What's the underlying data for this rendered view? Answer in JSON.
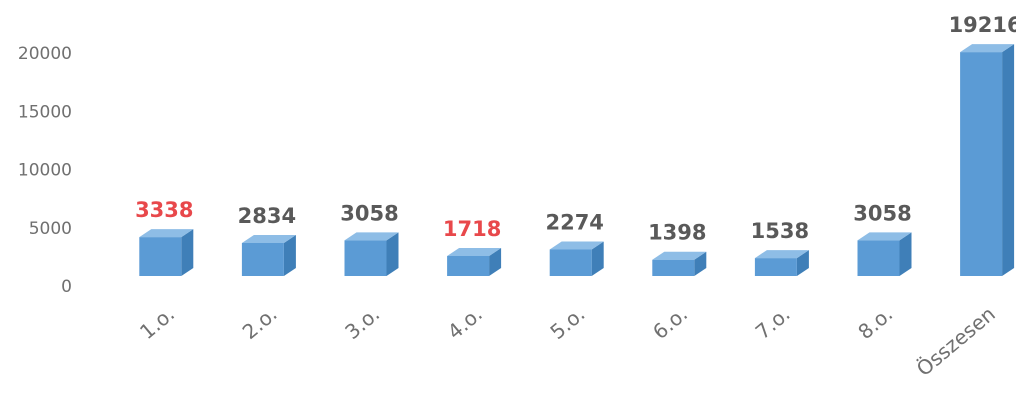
{
  "chart_data": {
    "type": "bar3d",
    "categories": [
      "1.o.",
      "2.o.",
      "3.o.",
      "4.o.",
      "5.o.",
      "6.o.",
      "7.o.",
      "8.o.",
      "Összesen"
    ],
    "values": [
      3338,
      2834,
      3058,
      1718,
      2274,
      1398,
      1538,
      3058,
      19216
    ],
    "color": "#5b9bd5",
    "label_colors": [
      "#e8484b",
      "#595959",
      "#595959",
      "#e8484b",
      "#595959",
      "#595959",
      "#595959",
      "#595959",
      "#595959"
    ],
    "ylim": [
      0,
      20000
    ],
    "yticks": [
      0,
      5000,
      10000,
      15000,
      20000
    ],
    "grid": false
  }
}
